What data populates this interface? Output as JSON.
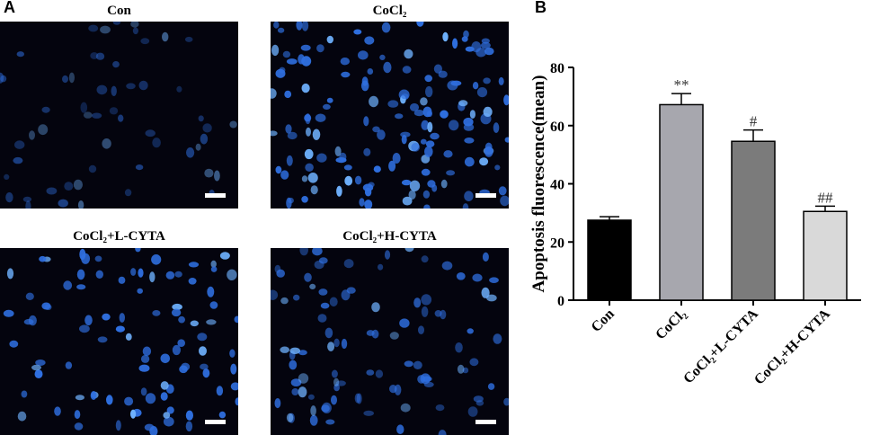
{
  "panel_a": {
    "letter": "A",
    "images": [
      {
        "title": "Con",
        "density": "sparse",
        "brightness": "dim"
      },
      {
        "title": "CoCl₂",
        "density": "dense",
        "brightness": "bright"
      },
      {
        "title": "CoCl₂+L-CYTA",
        "density": "medium",
        "brightness": "bright"
      },
      {
        "title": "CoCl₂+H-CYTA",
        "density": "medium",
        "brightness": "medium"
      }
    ],
    "nucleus_color": "#2f6fe0"
  },
  "panel_b": {
    "letter": "B"
  },
  "chart_data": {
    "type": "bar",
    "categories": [
      "Con",
      "CoCl₂",
      "CoCl₂+L-CYTA",
      "CoCl₂+H-CYTA"
    ],
    "values": [
      27.5,
      67.2,
      54.6,
      30.5
    ],
    "errors": [
      1.2,
      3.8,
      3.9,
      1.8
    ],
    "significance": [
      "",
      "**",
      "#",
      "##"
    ],
    "bar_colors": [
      "#000000",
      "#a7a7ae",
      "#7b7b7b",
      "#d9d9d9"
    ],
    "ylabel": "Apoptosis fluorescence(mean)",
    "xlabel": "",
    "ylim": [
      0,
      80
    ],
    "yticks": [
      0,
      20,
      40,
      60,
      80
    ],
    "grid": false
  }
}
